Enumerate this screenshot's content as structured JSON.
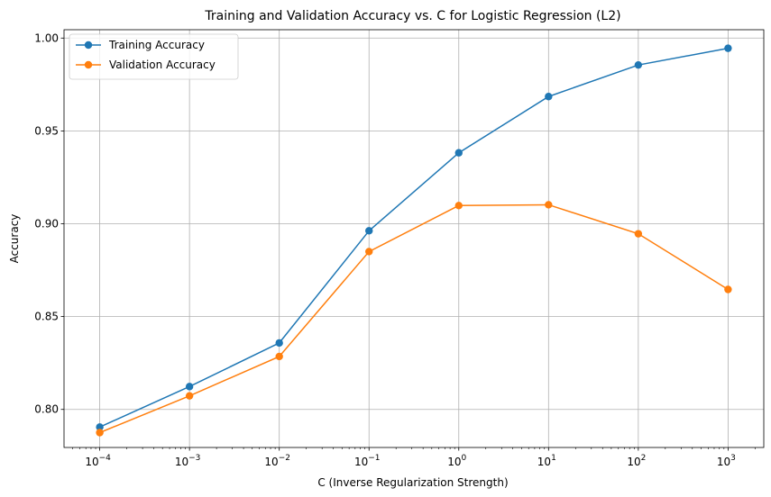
{
  "chart_data": {
    "type": "line",
    "title": "Training and Validation Accuracy vs. C for Logistic Regression (L2)",
    "xlabel": "C (Inverse Regularization Strength)",
    "ylabel": "Accuracy",
    "x_scale": "log",
    "x": [
      0.0001,
      0.001,
      0.01,
      0.1,
      1,
      10,
      100,
      1000
    ],
    "x_tick_labels": [
      {
        "base": "10",
        "exp": "−4"
      },
      {
        "base": "10",
        "exp": "−3"
      },
      {
        "base": "10",
        "exp": "−2"
      },
      {
        "base": "10",
        "exp": "−1"
      },
      {
        "base": "10",
        "exp": "0"
      },
      {
        "base": "10",
        "exp": "1"
      },
      {
        "base": "10",
        "exp": "2"
      },
      {
        "base": "10",
        "exp": "3"
      }
    ],
    "y_ticks": [
      "0.80",
      "0.85",
      "0.90",
      "0.95",
      "1.00"
    ],
    "xlim": [
      4e-05,
      2500
    ],
    "ylim": [
      0.7795,
      1.0045
    ],
    "grid": true,
    "legend_position": "top-left",
    "series": [
      {
        "name": "Training Accuracy",
        "color": "#1f77b4",
        "values": [
          0.7905,
          0.8123,
          0.8358,
          0.8962,
          0.9382,
          0.9685,
          0.9855,
          0.9945
        ]
      },
      {
        "name": "Validation Accuracy",
        "color": "#ff7f0e",
        "values": [
          0.7875,
          0.8073,
          0.8285,
          0.885,
          0.9098,
          0.9102,
          0.8946,
          0.8646
        ]
      }
    ]
  }
}
